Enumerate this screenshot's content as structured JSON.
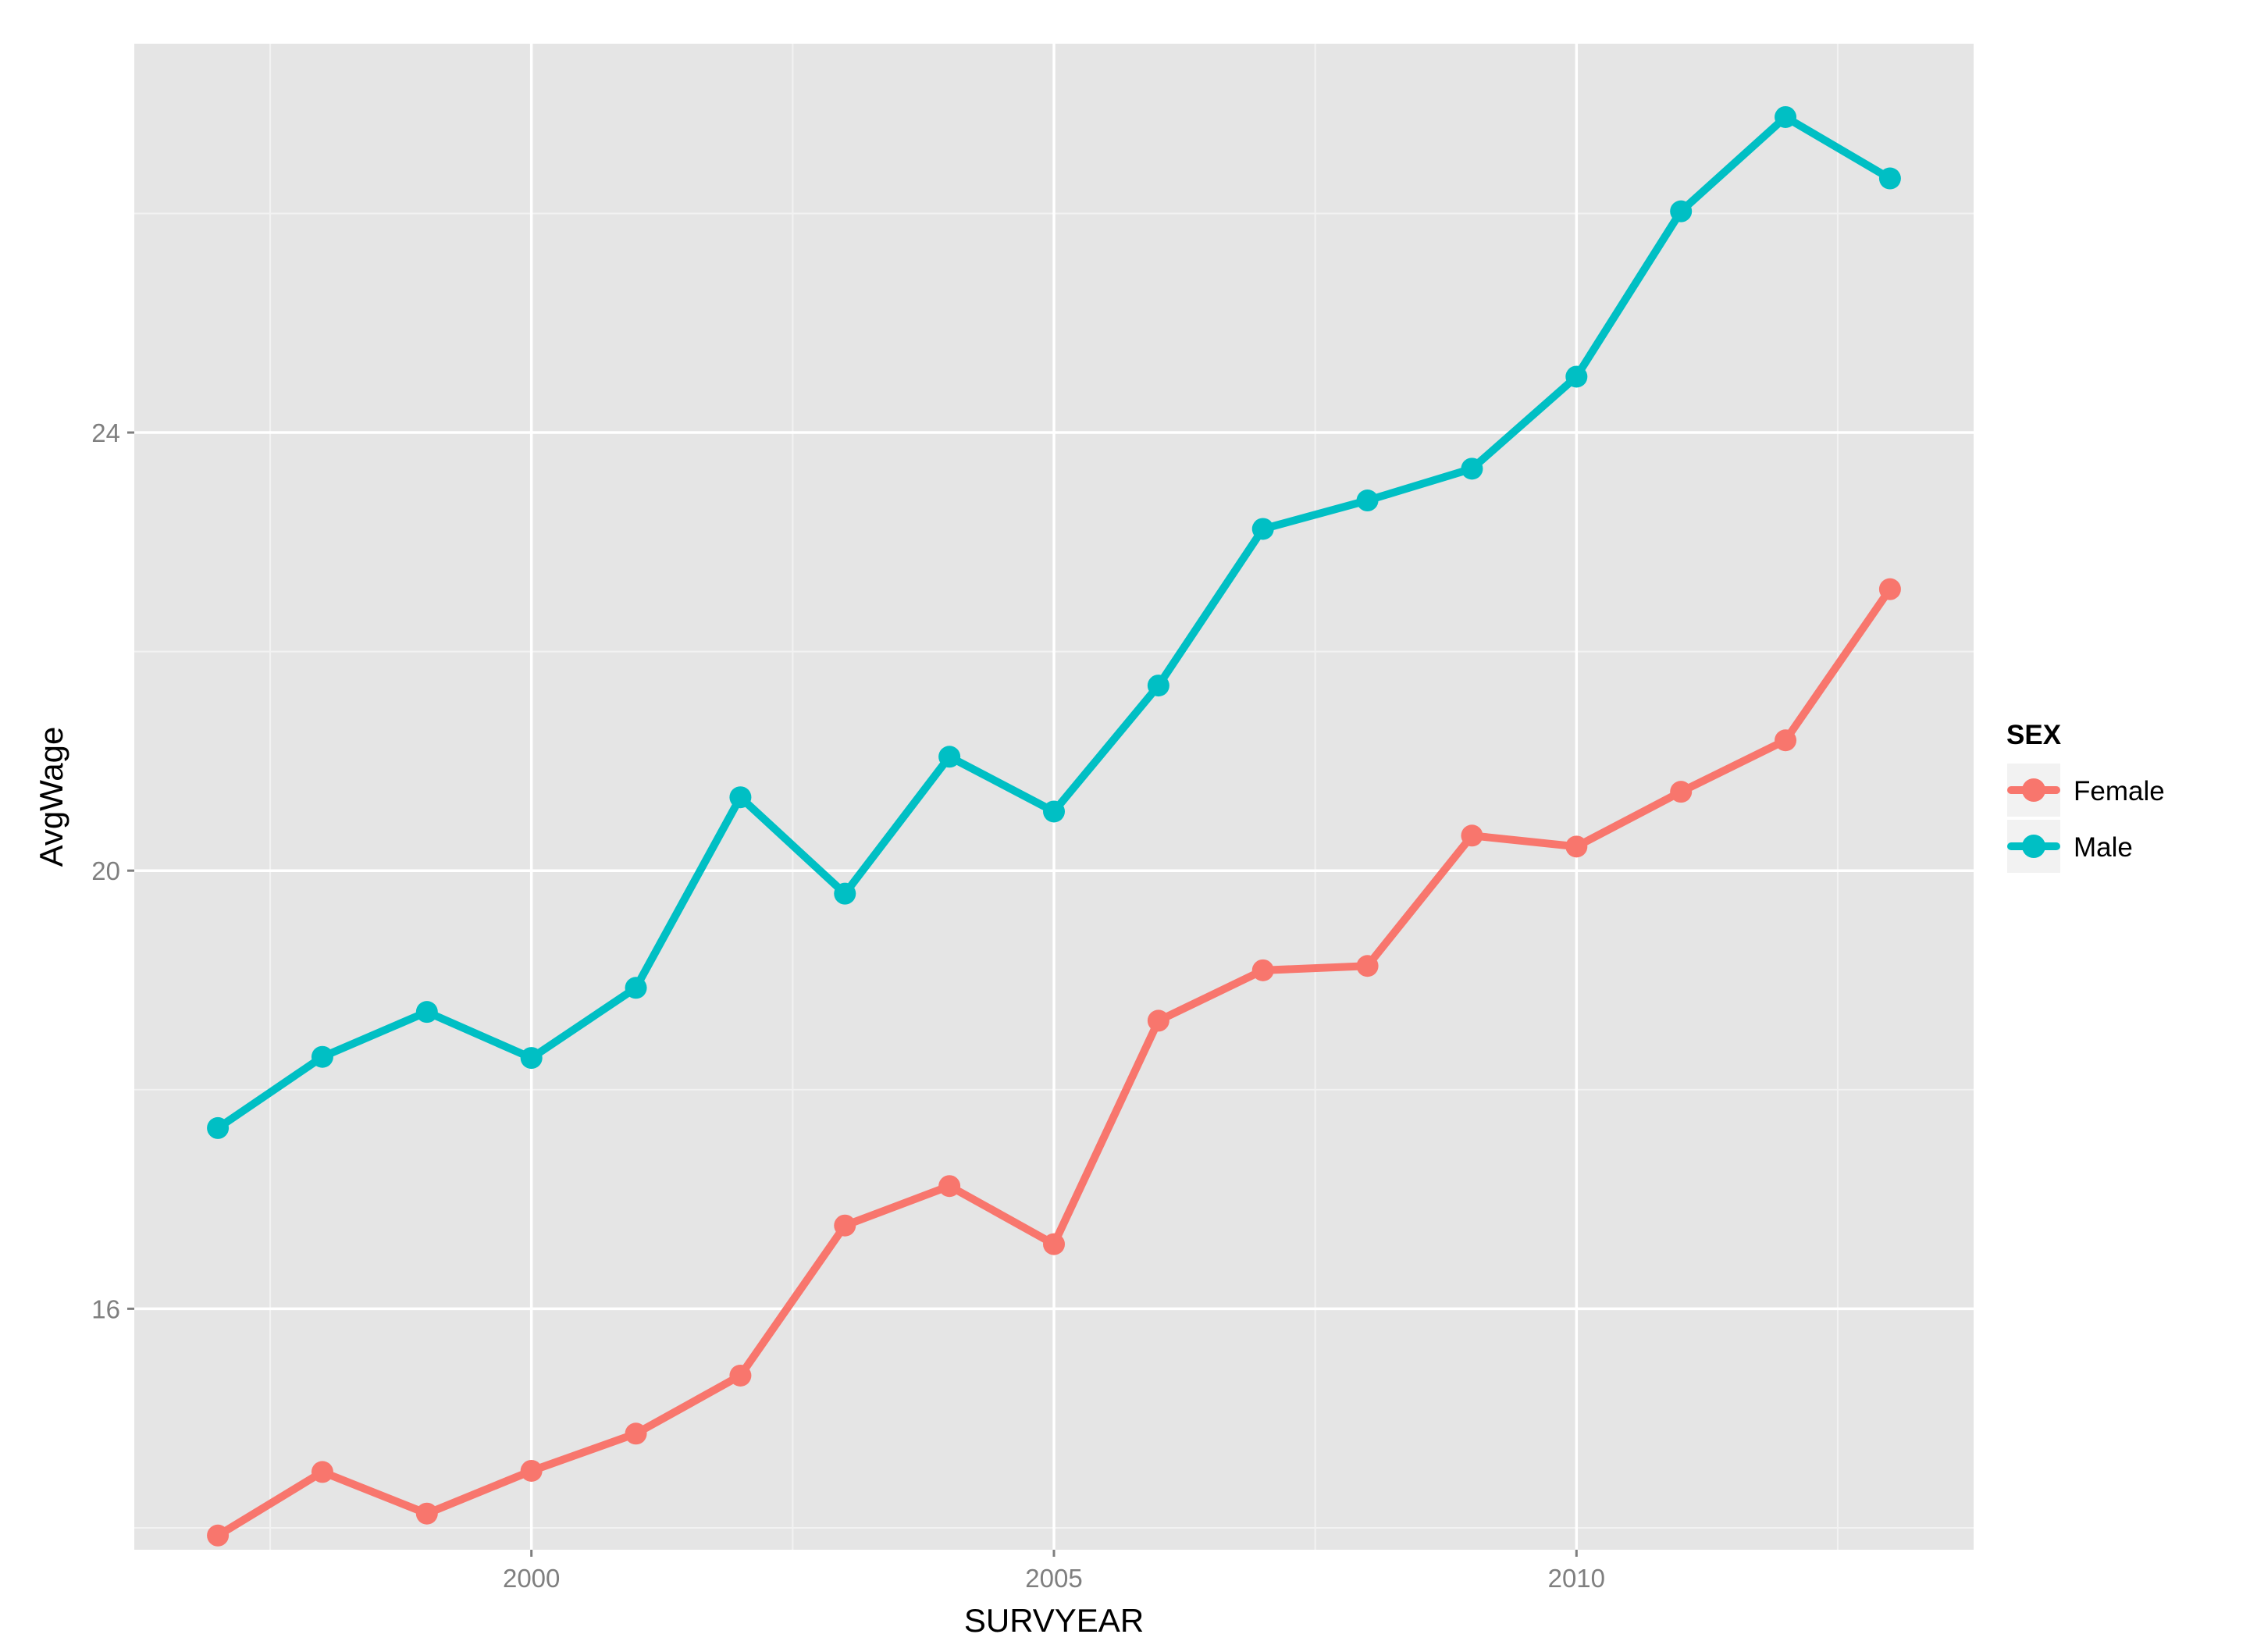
{
  "chart_data": {
    "type": "line",
    "xlabel": "SURVYEAR",
    "ylabel": "AvgWage",
    "xlim": [
      1996.2,
      2013.8
    ],
    "ylim": [
      13.8,
      27.55
    ],
    "x_ticks": [
      2000,
      2005,
      2010
    ],
    "x_tick_labels": [
      "2000",
      "2005",
      "2010"
    ],
    "x_minor_ticks": [
      1997.5,
      2002.5,
      2007.5,
      2012.5
    ],
    "y_ticks": [
      16,
      20,
      24
    ],
    "y_tick_labels": [
      "16",
      "20",
      "24"
    ],
    "y_minor_ticks": [
      14,
      18,
      22,
      26
    ],
    "grid": true,
    "panel_background": "#e5e5e5",
    "legend": {
      "title": "SEX",
      "position": "right"
    },
    "x": [
      1997,
      1998,
      1999,
      2000,
      2001,
      2002,
      2003,
      2004,
      2005,
      2006,
      2007,
      2008,
      2009,
      2010,
      2011,
      2012,
      2013
    ],
    "series": [
      {
        "name": "Female",
        "color": "#f8766d",
        "values": [
          13.93,
          14.51,
          14.13,
          14.52,
          14.86,
          15.39,
          16.76,
          17.12,
          16.59,
          18.63,
          19.09,
          19.13,
          20.32,
          20.22,
          20.72,
          21.19,
          22.57
        ]
      },
      {
        "name": "Male",
        "color": "#00bfc4",
        "values": [
          17.65,
          18.3,
          18.71,
          18.29,
          18.93,
          20.67,
          19.79,
          21.04,
          20.54,
          21.69,
          23.12,
          23.38,
          23.67,
          24.51,
          26.02,
          26.88,
          26.32
        ]
      }
    ]
  }
}
